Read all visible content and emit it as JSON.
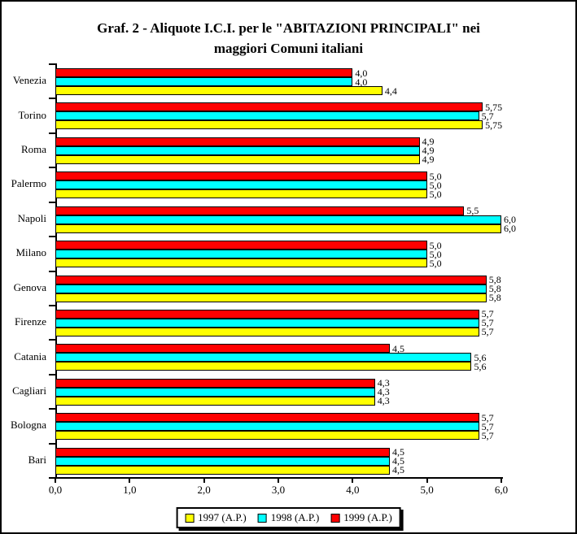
{
  "title": {
    "line1": "Graf. 2 - Aliquote I.C.I. per le \"ABITAZIONI PRINCIPALI\" nei",
    "line2": "maggiori Comuni italiani"
  },
  "chart_data": {
    "type": "bar",
    "orientation": "horizontal",
    "title": "Graf. 2 - Aliquote I.C.I. per le \"ABITAZIONI PRINCIPALI\" nei maggiori Comuni italiani",
    "categories": [
      "Venezia",
      "Torino",
      "Roma",
      "Palermo",
      "Napoli",
      "Milano",
      "Genova",
      "Firenze",
      "Catania",
      "Cagliari",
      "Bologna",
      "Bari"
    ],
    "series_note": "series listed in top-to-bottom order within each category group",
    "series": [
      {
        "name": "1999 (A.P.)",
        "color": "#FF0000",
        "values": [
          4.0,
          5.75,
          4.9,
          5.0,
          5.5,
          5.0,
          5.8,
          5.7,
          4.5,
          4.3,
          5.7,
          4.5
        ],
        "labels": [
          "4,0",
          "5,75",
          "4,9",
          "5,0",
          "5,5",
          "5,0",
          "5,8",
          "5,7",
          "4,5",
          "4,3",
          "5,7",
          "4,5"
        ]
      },
      {
        "name": "1998 (A.P.)",
        "color": "#00FFFF",
        "values": [
          4.0,
          5.7,
          4.9,
          5.0,
          6.0,
          5.0,
          5.8,
          5.7,
          5.6,
          4.3,
          5.7,
          4.5
        ],
        "labels": [
          "4,0",
          "5,7",
          "4,9",
          "5,0",
          "6,0",
          "5,0",
          "5,8",
          "5,7",
          "5,6",
          "4,3",
          "5,7",
          "4,5"
        ]
      },
      {
        "name": "1997 (A.P.)",
        "color": "#FFFF00",
        "values": [
          4.4,
          5.75,
          4.9,
          5.0,
          6.0,
          5.0,
          5.8,
          5.7,
          5.6,
          4.3,
          5.7,
          4.5
        ],
        "labels": [
          "4,4",
          "5,75",
          "4,9",
          "5,0",
          "6,0",
          "5,0",
          "5,8",
          "5,7",
          "5,6",
          "4,3",
          "5,7",
          "4,5"
        ]
      }
    ],
    "xlim": [
      0,
      6
    ],
    "x_ticks": [
      "0,0",
      "1,0",
      "2,0",
      "3,0",
      "4,0",
      "5,0",
      "6,0"
    ],
    "grid": false,
    "legend_position": "bottom-center",
    "legend": [
      {
        "label": "1997 (A.P.)",
        "color": "#FFFF00"
      },
      {
        "label": "1998 (A.P.)",
        "color": "#00FFFF"
      },
      {
        "label": "1999 (A.P.)",
        "color": "#FF0000"
      }
    ]
  }
}
